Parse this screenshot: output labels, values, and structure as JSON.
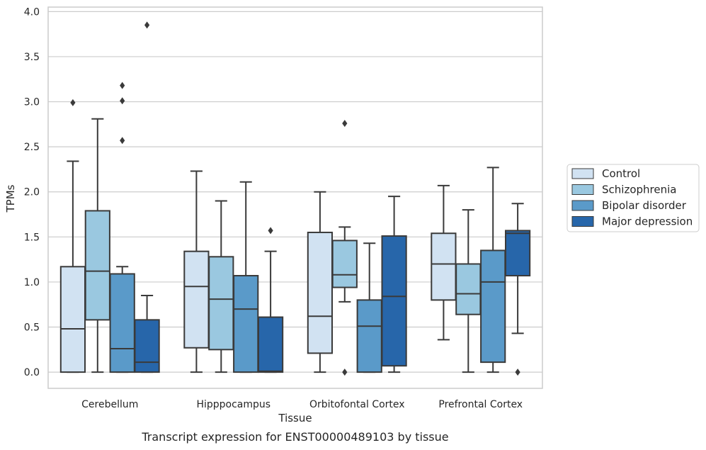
{
  "caption": "Transcript expression for ENST00000489103 by tissue",
  "chart_data": {
    "type": "box",
    "xlabel": "Tissue",
    "ylabel": "TPMs",
    "ylim": [
      -0.18,
      4.05
    ],
    "yticks": [
      0.0,
      0.5,
      1.0,
      1.5,
      2.0,
      2.5,
      3.0,
      3.5,
      4.0
    ],
    "ytick_labels": [
      "0.0",
      "0.5",
      "1.0",
      "1.5",
      "2.0",
      "2.5",
      "3.0",
      "3.5",
      "4.0"
    ],
    "grid": "horizontal",
    "legend_position": "right",
    "categories": [
      "Cerebellum",
      "Hipppocampus",
      "Orbitofontal Cortex",
      "Prefrontal Cortex"
    ],
    "series": [
      {
        "name": "Control",
        "color": "#d1e2f2",
        "boxes": [
          {
            "whisker_low": 0.0,
            "q1": 0.0,
            "median": 0.48,
            "q3": 1.17,
            "whisker_high": 2.34,
            "outliers": [
              2.99
            ]
          },
          {
            "whisker_low": 0.0,
            "q1": 0.27,
            "median": 0.95,
            "q3": 1.34,
            "whisker_high": 2.23,
            "outliers": []
          },
          {
            "whisker_low": 0.0,
            "q1": 0.21,
            "median": 0.62,
            "q3": 1.55,
            "whisker_high": 2.0,
            "outliers": []
          },
          {
            "whisker_low": 0.36,
            "q1": 0.8,
            "median": 1.2,
            "q3": 1.54,
            "whisker_high": 2.07,
            "outliers": []
          }
        ]
      },
      {
        "name": "Schizophrenia",
        "color": "#9ac8e0",
        "boxes": [
          {
            "whisker_low": 0.0,
            "q1": 0.58,
            "median": 1.12,
            "q3": 1.79,
            "whisker_high": 2.81,
            "outliers": []
          },
          {
            "whisker_low": 0.0,
            "q1": 0.25,
            "median": 0.81,
            "q3": 1.28,
            "whisker_high": 1.9,
            "outliers": []
          },
          {
            "whisker_low": 0.78,
            "q1": 0.94,
            "median": 1.08,
            "q3": 1.46,
            "whisker_high": 1.61,
            "outliers": [
              0.0,
              2.76
            ]
          },
          {
            "whisker_low": 0.0,
            "q1": 0.64,
            "median": 0.87,
            "q3": 1.2,
            "whisker_high": 1.8,
            "outliers": []
          }
        ]
      },
      {
        "name": "Bipolar disorder",
        "color": "#5a9ac9",
        "boxes": [
          {
            "whisker_low": 0.0,
            "q1": 0.0,
            "median": 0.26,
            "q3": 1.09,
            "whisker_high": 1.17,
            "outliers": [
              2.57,
              3.01,
              3.18
            ]
          },
          {
            "whisker_low": 0.0,
            "q1": 0.0,
            "median": 0.7,
            "q3": 1.07,
            "whisker_high": 2.11,
            "outliers": []
          },
          {
            "whisker_low": 0.0,
            "q1": 0.0,
            "median": 0.51,
            "q3": 0.8,
            "whisker_high": 1.43,
            "outliers": []
          },
          {
            "whisker_low": 0.0,
            "q1": 0.11,
            "median": 1.0,
            "q3": 1.35,
            "whisker_high": 2.27,
            "outliers": []
          }
        ]
      },
      {
        "name": "Major depression",
        "color": "#2766aa",
        "boxes": [
          {
            "whisker_low": 0.0,
            "q1": 0.0,
            "median": 0.11,
            "q3": 0.58,
            "whisker_high": 0.85,
            "outliers": [
              3.85
            ]
          },
          {
            "whisker_low": 0.0,
            "q1": 0.0,
            "median": 0.01,
            "q3": 0.61,
            "whisker_high": 1.34,
            "outliers": [
              1.57
            ]
          },
          {
            "whisker_low": 0.0,
            "q1": 0.07,
            "median": 0.84,
            "q3": 1.51,
            "whisker_high": 1.95,
            "outliers": []
          },
          {
            "whisker_low": 0.43,
            "q1": 1.07,
            "median": 1.54,
            "q3": 1.57,
            "whisker_high": 1.87,
            "outliers": [
              0.0
            ]
          }
        ]
      }
    ]
  }
}
